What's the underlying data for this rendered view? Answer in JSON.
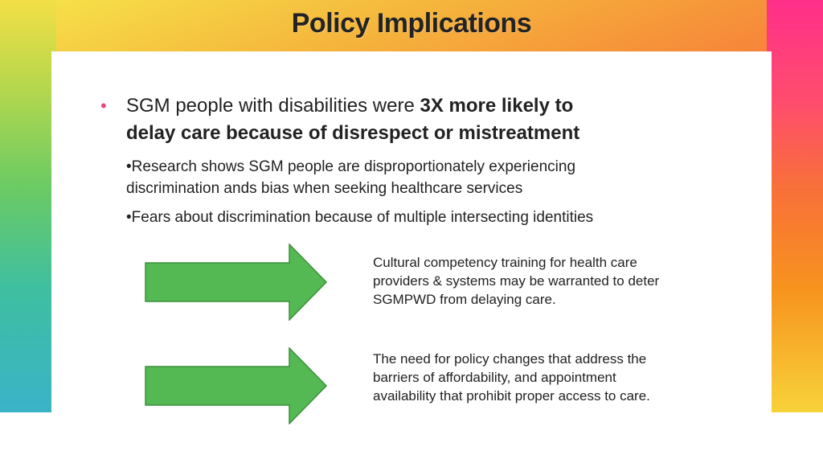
{
  "slide": {
    "title": "Policy Implications",
    "main_bullet": {
      "text_plain": "SGM people with disabilities were ",
      "text_bold_1": "3X more likely to",
      "text_bold_2": "delay care because of disrespect or mistreatment"
    },
    "sub_bullets": [
      "•Research shows SGM people are disproportionately experiencing discrimination ands bias when seeking healthcare services",
      "•Fears about discrimination because of multiple intersecting identities"
    ],
    "implications": [
      "Cultural competency training for health care providers & systems may be warranted to deter SGMPWD from delaying care.",
      "The need for policy changes that address the barriers of affordability, and appointment availability that prohibit proper access to care."
    ],
    "colors": {
      "arrow_fill": "#54b953",
      "arrow_stroke": "#3d8f3c",
      "bullet_accent": "#e8457a"
    }
  }
}
